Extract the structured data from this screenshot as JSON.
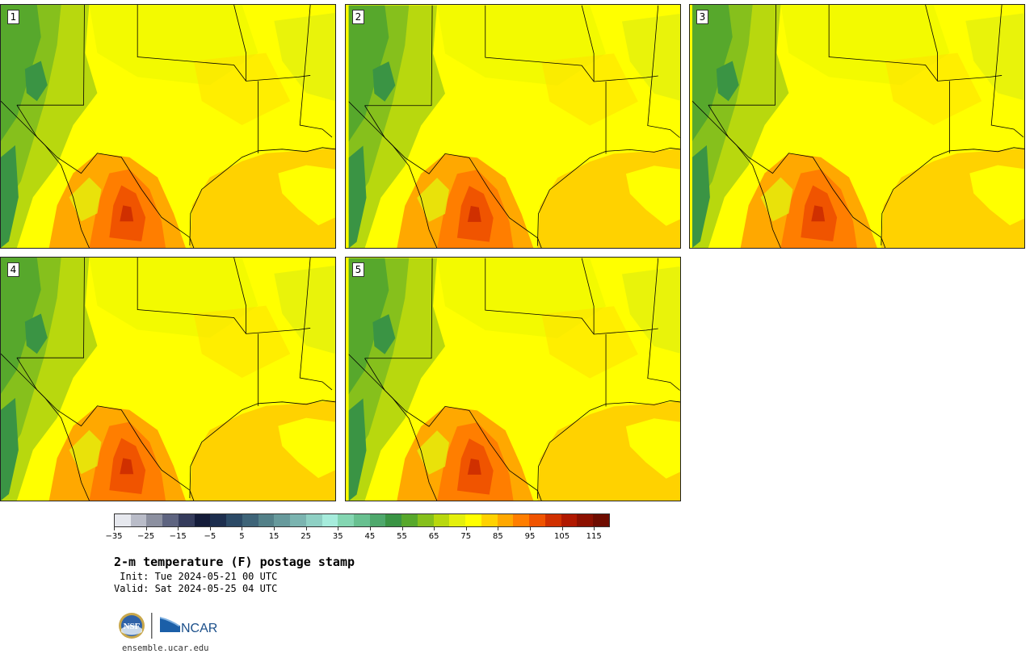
{
  "panels": [
    {
      "label": "1"
    },
    {
      "label": "2"
    },
    {
      "label": "3"
    },
    {
      "label": "4"
    },
    {
      "label": "5"
    }
  ],
  "colorbar": {
    "colors": [
      "#e6e8ee",
      "#b9bcc8",
      "#8c90a0",
      "#5e6480",
      "#353c5c",
      "#141c3a",
      "#1d2e4e",
      "#2c4a66",
      "#3e6478",
      "#538088",
      "#679a9c",
      "#7bb4b0",
      "#8fd0c4",
      "#a6ecdc",
      "#84d6b2",
      "#68c090",
      "#4ea86c",
      "#3a9444",
      "#57a82c",
      "#86c01c",
      "#b8d80e",
      "#e4f00c",
      "#ffff00",
      "#ffd200",
      "#ffa800",
      "#ff7e00",
      "#f05400",
      "#d03000",
      "#b01800",
      "#8c1000",
      "#6e0c00"
    ],
    "ticks": [
      "−35",
      "−25",
      "−15",
      "−5",
      "5",
      "15",
      "25",
      "35",
      "45",
      "55",
      "65",
      "75",
      "85",
      "95",
      "105",
      "115"
    ]
  },
  "title": "2-m temperature (F) postage stamp",
  "init": " Init: Tue 2024-05-21 00 UTC",
  "valid": "Valid: Sat 2024-05-25 04 UTC",
  "logos": {
    "nsf": "NSF",
    "ncar": "NCAR"
  },
  "website": "ensemble.ucar.edu"
}
